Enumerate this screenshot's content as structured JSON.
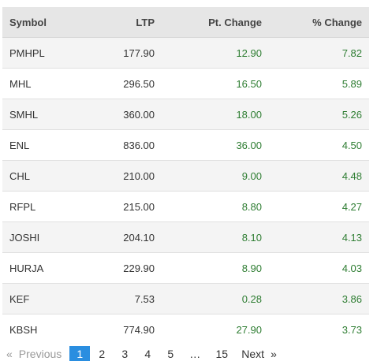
{
  "table": {
    "headers": {
      "symbol": "Symbol",
      "ltp": "LTP",
      "pt_change": "Pt. Change",
      "pct_change": "% Change"
    },
    "rows": [
      {
        "symbol": "PMHPL",
        "ltp": "177.90",
        "pt_change": "12.90",
        "pct_change": "7.82"
      },
      {
        "symbol": "MHL",
        "ltp": "296.50",
        "pt_change": "16.50",
        "pct_change": "5.89"
      },
      {
        "symbol": "SMHL",
        "ltp": "360.00",
        "pt_change": "18.00",
        "pct_change": "5.26"
      },
      {
        "symbol": "ENL",
        "ltp": "836.00",
        "pt_change": "36.00",
        "pct_change": "4.50"
      },
      {
        "symbol": "CHL",
        "ltp": "210.00",
        "pt_change": "9.00",
        "pct_change": "4.48"
      },
      {
        "symbol": "RFPL",
        "ltp": "215.00",
        "pt_change": "8.80",
        "pct_change": "4.27"
      },
      {
        "symbol": "JOSHI",
        "ltp": "204.10",
        "pt_change": "8.10",
        "pct_change": "4.13"
      },
      {
        "symbol": "HURJA",
        "ltp": "229.90",
        "pt_change": "8.90",
        "pct_change": "4.03"
      },
      {
        "symbol": "KEF",
        "ltp": "7.53",
        "pt_change": "0.28",
        "pct_change": "3.86"
      },
      {
        "symbol": "KBSH",
        "ltp": "774.90",
        "pt_change": "27.90",
        "pct_change": "3.73"
      }
    ]
  },
  "pagination": {
    "prev_arrow": "«",
    "previous": "Previous",
    "pages": [
      "1",
      "2",
      "3",
      "4",
      "5"
    ],
    "ellipsis": "…",
    "last_page": "15",
    "next": "Next",
    "next_arrow": "»",
    "current_page": "1"
  },
  "colors": {
    "positive": "#2e7d32",
    "active_page": "#2a8ee0",
    "header_bg": "#e6e6e6"
  }
}
